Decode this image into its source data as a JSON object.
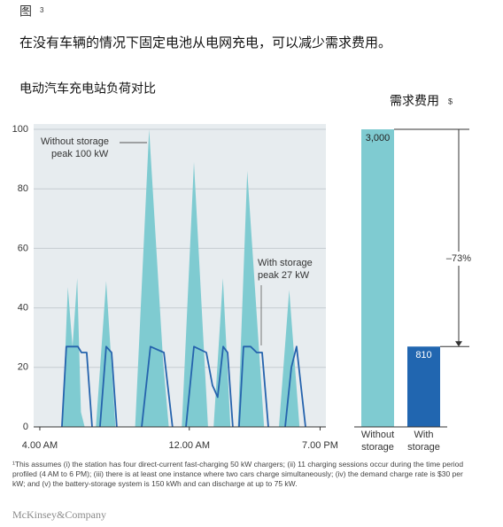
{
  "figure_label": "图",
  "figure_number": "3",
  "headline": "在没有车辆的情况下固定电池从电网充电，可以减少需求费用。",
  "chart_data": [
    {
      "type": "line",
      "title": "电动汽车充电站负荷对比",
      "xlim": [
        3.67,
        19.31
      ],
      "xticks": [
        {
          "value": 4,
          "label": "4.00 AM"
        },
        {
          "value": 12,
          "label": "12.00 AM"
        },
        {
          "value": 19,
          "label": "7.00 PM"
        }
      ],
      "ylim": [
        0,
        100
      ],
      "yticks": [
        0,
        20,
        40,
        60,
        80,
        100
      ],
      "grid": true,
      "series": [
        {
          "name": "Without storage",
          "area": true,
          "color": "#7fcbd1",
          "x": [
            5.2,
            5.5,
            5.75,
            6.0,
            6.2,
            6.4,
            7.0,
            7.55,
            8.05,
            9.1,
            9.85,
            10.6,
            10.9,
            11.6,
            12.25,
            13.0,
            13.3,
            13.8,
            14.2,
            14.6,
            15.1,
            16.0,
            16.8,
            17.35,
            17.9
          ],
          "values": [
            0,
            47,
            27,
            50,
            5,
            0,
            0,
            49,
            0,
            0,
            100,
            22,
            0,
            0,
            89,
            0,
            0,
            50,
            0,
            0,
            86,
            0,
            0,
            46,
            0
          ]
        },
        {
          "name": "With storage",
          "area": false,
          "color": "#2563ad",
          "x": [
            5.18,
            5.42,
            6.04,
            6.23,
            6.51,
            6.8,
            null,
            7.22,
            7.55,
            7.84,
            8.12,
            null,
            9.45,
            9.92,
            10.64,
            11.1,
            null,
            11.82,
            12.25,
            12.91,
            13.24,
            13.52,
            13.81,
            14.05,
            14.33,
            null,
            14.66,
            14.9,
            15.28,
            15.61,
            15.9,
            16.23,
            null,
            17.13,
            17.46,
            17.74,
            18.22
          ],
          "values": [
            0,
            27,
            27,
            25,
            25,
            0,
            null,
            0,
            27,
            25,
            0,
            null,
            0,
            27,
            25,
            0,
            null,
            0,
            27,
            25,
            14,
            10,
            27,
            25,
            0,
            null,
            0,
            27,
            27,
            25,
            25,
            0,
            null,
            0,
            20,
            27,
            0
          ]
        }
      ],
      "annotations": [
        "peak 100 kW",
        "peak 27 kW"
      ]
    },
    {
      "type": "bar",
      "title": "需求费用",
      "unit": "$",
      "categories": [
        "Without storage",
        "With storage"
      ],
      "values": [
        3000,
        810
      ],
      "value_labels": [
        "3,000",
        "810"
      ],
      "colors": [
        "#7fcbd1",
        "#2166b0"
      ],
      "ylim": [
        0,
        3000
      ],
      "change_label": "–73%"
    }
  ],
  "footnote": "¹This assumes (i) the station has four direct-current fast-charging 50 kW chargers; (ii) 11 charging sessions occur during the time period profiled (4 AM to 6 PM); (iii) there is at least one instance where two cars charge simultaneously; (iv) the demand charge rate is $30 per kW; and (v) the battery-storage system is 150 kWh and can discharge at up to 75 kW.",
  "logo": "McKinsey&Company"
}
